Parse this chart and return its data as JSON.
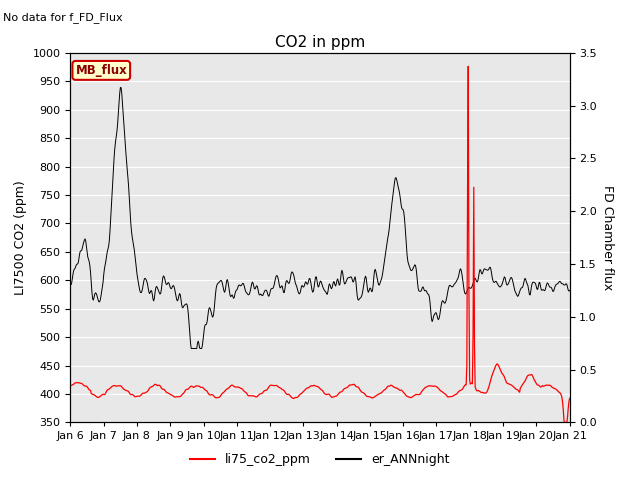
{
  "title": "CO2 in ppm",
  "top_left_text": "No data for f_FD_Flux",
  "ylabel_left": "LI7500 CO2 (ppm)",
  "ylabel_right": "FD Chamber flux",
  "ylim_left": [
    350,
    1000
  ],
  "ylim_right": [
    0.0,
    3.5
  ],
  "yticks_left": [
    350,
    400,
    450,
    500,
    550,
    600,
    650,
    700,
    750,
    800,
    850,
    900,
    950,
    1000
  ],
  "yticks_right": [
    0.0,
    0.5,
    1.0,
    1.5,
    2.0,
    2.5,
    3.0,
    3.5
  ],
  "xtick_labels": [
    "Jan 6",
    "Jan 7",
    "Jan 8",
    "Jan 9",
    "Jan 10",
    "Jan 11",
    "Jan 12",
    "Jan 13",
    "Jan 14",
    "Jan 15",
    "Jan 16",
    "Jan 17",
    "Jan 18",
    "Jan 19",
    "Jan 20",
    "Jan 21"
  ],
  "legend_entries": [
    "li75_co2_ppm",
    "er_ANNnight"
  ],
  "legend_colors": [
    "red",
    "black"
  ],
  "background_color": "#e8e8e8",
  "box_label": "MB_flux",
  "box_facecolor": "#ffffcc",
  "box_edgecolor": "#cc0000",
  "title_fontsize": 11,
  "axis_fontsize": 9,
  "tick_fontsize": 8
}
